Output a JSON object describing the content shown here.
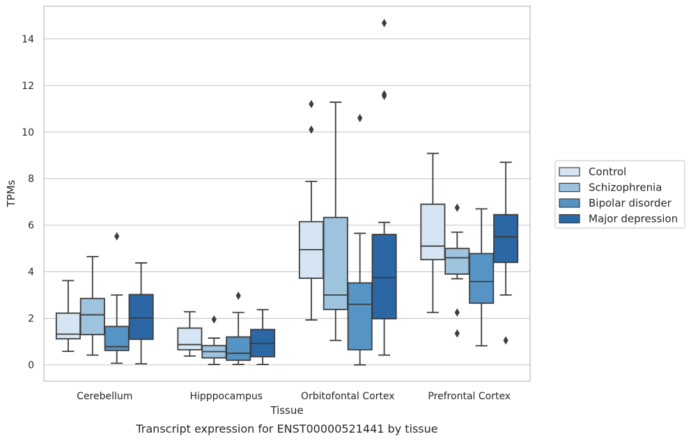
{
  "chart_data": {
    "type": "boxplot",
    "xlabel": "Tissue",
    "ylabel": "TPMs",
    "caption": "Transcript expression for ENST00000521441 by tissue",
    "ylim": [
      -0.7,
      15.4
    ],
    "yticks": [
      0,
      2,
      4,
      6,
      8,
      10,
      12,
      14
    ],
    "grid": "horizontal",
    "legend_position": "right",
    "categories": [
      "Cerebellum",
      "Hipppocampus",
      "Orbitofontal Cortex",
      "Prefrontal Cortex"
    ],
    "series": [
      {
        "name": "Control",
        "color": "#d6e5f3",
        "boxes": [
          {
            "whislo": 0.58,
            "q1": 1.12,
            "med": 1.32,
            "q3": 2.22,
            "whishi": 3.62,
            "fliers": []
          },
          {
            "whislo": 0.38,
            "q1": 0.65,
            "med": 0.87,
            "q3": 1.58,
            "whishi": 2.28,
            "fliers": []
          },
          {
            "whislo": 1.93,
            "q1": 3.72,
            "med": 4.95,
            "q3": 6.15,
            "whishi": 7.88,
            "fliers": [
              10.1,
              11.2
            ]
          },
          {
            "whislo": 2.25,
            "q1": 4.52,
            "med": 5.1,
            "q3": 6.9,
            "whishi": 9.08,
            "fliers": []
          }
        ]
      },
      {
        "name": "Schizophrenia",
        "color": "#9dc3df",
        "boxes": [
          {
            "whislo": 0.42,
            "q1": 1.3,
            "med": 2.15,
            "q3": 2.85,
            "whishi": 4.65,
            "fliers": []
          },
          {
            "whislo": 0.02,
            "q1": 0.3,
            "med": 0.57,
            "q3": 0.83,
            "whishi": 1.15,
            "fliers": [
              1.95
            ]
          },
          {
            "whislo": 1.05,
            "q1": 2.38,
            "med": 3.0,
            "q3": 6.33,
            "whishi": 11.28,
            "fliers": []
          },
          {
            "whislo": 3.7,
            "q1": 3.9,
            "med": 4.6,
            "q3": 5.0,
            "whishi": 5.7,
            "fliers": [
              6.75,
              2.25,
              1.35
            ]
          }
        ]
      },
      {
        "name": "Bipolar disorder",
        "color": "#5594c4",
        "boxes": [
          {
            "whislo": 0.07,
            "q1": 0.62,
            "med": 0.78,
            "q3": 1.65,
            "whishi": 3.0,
            "fliers": [
              5.52
            ]
          },
          {
            "whislo": 0.02,
            "q1": 0.2,
            "med": 0.5,
            "q3": 1.2,
            "whishi": 2.25,
            "fliers": [
              2.97
            ]
          },
          {
            "whislo": 0.0,
            "q1": 0.65,
            "med": 2.6,
            "q3": 3.52,
            "whishi": 5.65,
            "fliers": [
              10.6
            ]
          },
          {
            "whislo": 0.82,
            "q1": 2.65,
            "med": 3.58,
            "q3": 4.78,
            "whishi": 6.7,
            "fliers": []
          }
        ]
      },
      {
        "name": "Major depression",
        "color": "#2b66a5",
        "boxes": [
          {
            "whislo": 0.05,
            "q1": 1.1,
            "med": 2.02,
            "q3": 3.02,
            "whishi": 4.38,
            "fliers": []
          },
          {
            "whislo": 0.02,
            "q1": 0.35,
            "med": 0.92,
            "q3": 1.52,
            "whishi": 2.37,
            "fliers": []
          },
          {
            "whislo": 0.42,
            "q1": 1.98,
            "med": 3.75,
            "q3": 5.6,
            "whishi": 6.12,
            "fliers": [
              11.55,
              11.62,
              14.68
            ]
          },
          {
            "whislo": 3.0,
            "q1": 4.4,
            "med": 5.5,
            "q3": 6.45,
            "whishi": 8.7,
            "fliers": [
              1.05
            ]
          }
        ]
      }
    ]
  }
}
